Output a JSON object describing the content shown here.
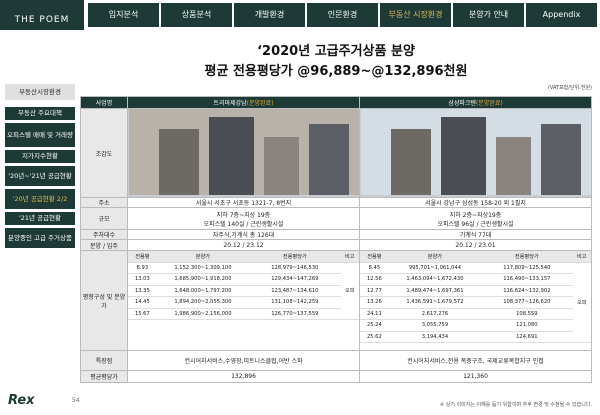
{
  "header": {
    "logo": "THE POEM",
    "tabs": [
      "입지분석",
      "상품분석",
      "개발환경",
      "인문환경",
      "부동산 시장환경",
      "분양가 안내",
      "Appendix"
    ]
  },
  "sidebar": {
    "title": "부동산시장환경",
    "items": [
      "부동산 주요대책",
      "오피스텔 매매 및 거래량",
      "지가지수현황",
      "'20년~'21년 공급현황",
      "'20년 공급현황 2/2",
      "'21년 공급현황",
      "분양중인 고급 주거상품"
    ]
  },
  "title": {
    "line1": "‘2020년 고급주거상품 분양",
    "line2": "평균 전용평당가 @96,889~@132,896천원",
    "note": "(VAT포함/단위:천원)"
  },
  "table": {
    "row_labels": [
      "사업명",
      "조감도",
      "주소",
      "규모",
      "주차대수",
      "분양 / 입주",
      "평형구성 및 분양가",
      "특장점",
      "평균평당가"
    ],
    "projects": [
      {
        "name": "트리마제강남",
        "status": "(분양완료)",
        "address": "서울시 서초구 서초동 1321-7, 8번지",
        "scale": [
          "지하 7층~지상 19층",
          "오피스텔 140실 / 근린생활시설"
        ],
        "parking": "자주식,기계식 총 126대",
        "schedule": "20.12 / 23.12",
        "units": {
          "headers": [
            "전용평",
            "분양가",
            "전용평당가",
            "비고"
          ],
          "note": "오피",
          "rows": [
            [
              "8.93",
              "1,152,300~1,309,100",
              "128,979~146,530"
            ],
            [
              "13.03",
              "1,685,900~1,918,200",
              "129,434~147,269"
            ],
            [
              "13.35",
              "1,648,000~1,797,200",
              "123,487~134,610"
            ],
            [
              "14.45",
              "1,894,200~2,055,300",
              "131,108~142,259"
            ],
            [
              "15.67",
              "1,986,900~2,156,000",
              "126,770~137,559"
            ]
          ]
        },
        "features": "컨시어지서비스,수영장,피트니스클럽,어반 스파",
        "avg": "132,896"
      },
      {
        "name": "삼성파크텐",
        "status": "(분양완료)",
        "address": "서울시 강남구 삼성동 158-20 외 1필지",
        "scale": [
          "지하 2층~지상19층",
          "오피스텔 96실 / 근린생활시설"
        ],
        "parking": "기계식 77대",
        "schedule": "20.12 / 23.01",
        "units": {
          "headers": [
            "전용평",
            "분양가",
            "전용평당가",
            "비고"
          ],
          "note": "오피",
          "rows": [
            [
              "8.45",
              "995,701~1,061,044",
              "117,809~125,540"
            ],
            [
              "12.56",
              "1,463,094~1,672,430",
              "116,490~133,157"
            ],
            [
              "12.77",
              "1,489,474~1,697,361",
              "116,624~132,902"
            ],
            [
              "13.26",
              "1,436,591~1,679,572",
              "108,377~126,620"
            ],
            [
              "24.11",
              "2,617,276",
              "108,559"
            ],
            [
              "25.24",
              "3,055,759",
              "121,080"
            ],
            [
              "25.62",
              "3,194,434",
              "124,691"
            ]
          ]
        },
        "features": "컨시어지서비스,전용 복층구조, 국제교류복합지구 인접",
        "avg": "121,360"
      }
    ]
  },
  "footer": {
    "logo": "Rex",
    "page": "54",
    "disclaimer": "※ 상기 이미지는 이해를 돕기 위함이며 추후 변경 및 수정될 수 있습니다."
  }
}
